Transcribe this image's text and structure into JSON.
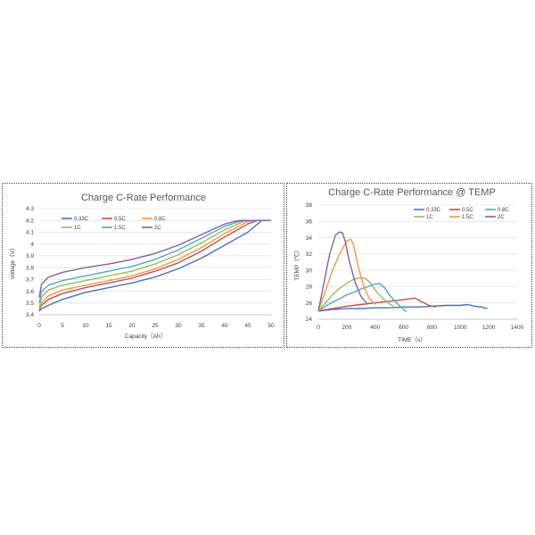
{
  "chart_data": [
    {
      "type": "line",
      "title": "Charge C-Rate Performance",
      "xlabel": "Capacity（Ah）",
      "ylabel": "Voltage（V）",
      "xlim": [
        0,
        50
      ],
      "ylim": [
        3.4,
        4.3
      ],
      "xticks": [
        "0",
        "5",
        "10",
        "15",
        "20",
        "25",
        "30",
        "35",
        "40",
        "45",
        "50"
      ],
      "yticks": [
        "3.4",
        "3.5",
        "3.6",
        "3.7",
        "3.8",
        "3.9",
        "4",
        "4.1",
        "4.2",
        "4.3"
      ],
      "grid": "horizontal",
      "legend": "top-left",
      "series": [
        {
          "name": "0.33C",
          "color": "#4472C4",
          "x": [
            0,
            0.5,
            2,
            5,
            10,
            15,
            20,
            25,
            30,
            35,
            40,
            45,
            48,
            50
          ],
          "y": [
            3.43,
            3.45,
            3.48,
            3.53,
            3.59,
            3.63,
            3.67,
            3.72,
            3.79,
            3.88,
            3.99,
            4.1,
            4.2,
            4.2
          ]
        },
        {
          "name": "0.5C",
          "color": "#C0504D",
          "x": [
            0,
            0.5,
            2,
            5,
            10,
            15,
            20,
            25,
            30,
            35,
            40,
            45,
            47,
            50
          ],
          "y": [
            3.44,
            3.48,
            3.53,
            3.58,
            3.63,
            3.67,
            3.71,
            3.77,
            3.84,
            3.94,
            4.06,
            4.17,
            4.2,
            4.2
          ]
        },
        {
          "name": "0.8C",
          "color": "#F79646",
          "x": [
            0,
            0.5,
            2,
            5,
            10,
            15,
            20,
            25,
            30,
            35,
            40,
            45,
            46.5,
            50
          ],
          "y": [
            3.45,
            3.5,
            3.56,
            3.61,
            3.65,
            3.69,
            3.73,
            3.79,
            3.87,
            3.97,
            4.09,
            4.19,
            4.2,
            4.2
          ]
        },
        {
          "name": "1C",
          "color": "#9BBB59",
          "x": [
            0,
            0.5,
            2,
            5,
            10,
            15,
            20,
            25,
            30,
            35,
            40,
            44,
            45.5,
            50
          ],
          "y": [
            3.46,
            3.55,
            3.61,
            3.65,
            3.69,
            3.73,
            3.77,
            3.83,
            3.91,
            4.01,
            4.12,
            4.19,
            4.2,
            4.2
          ]
        },
        {
          "name": "1.5C",
          "color": "#4BACC6",
          "x": [
            0,
            0.5,
            2,
            5,
            10,
            15,
            20,
            25,
            30,
            35,
            40,
            43,
            44.5,
            50
          ],
          "y": [
            3.5,
            3.6,
            3.65,
            3.69,
            3.73,
            3.77,
            3.81,
            3.87,
            3.95,
            4.05,
            4.15,
            4.19,
            4.2,
            4.2
          ]
        },
        {
          "name": "2C",
          "color": "#8064A2",
          "x": [
            0,
            0.5,
            2,
            5,
            10,
            15,
            20,
            25,
            30,
            35,
            40,
            42,
            43.5,
            50
          ],
          "y": [
            3.55,
            3.66,
            3.72,
            3.76,
            3.8,
            3.83,
            3.87,
            3.92,
            3.99,
            4.08,
            4.17,
            4.19,
            4.2,
            4.2
          ]
        }
      ]
    },
    {
      "type": "line",
      "title": "Charge C-Rate Performance @ TEMP",
      "xlabel": "TIME（s）",
      "ylabel": "TEMP（℃）",
      "xlim": [
        0,
        1400
      ],
      "ylim": [
        24,
        38
      ],
      "xticks": [
        "0",
        "200",
        "400",
        "600",
        "800",
        "1000",
        "1200",
        "1400"
      ],
      "yticks": [
        "24",
        "26",
        "28",
        "30",
        "32",
        "34",
        "36",
        "38"
      ],
      "grid": "horizontal",
      "legend": "top-right",
      "series": [
        {
          "name": "0.33C",
          "color": "#4472C4",
          "x": [
            0,
            100,
            200,
            300,
            400,
            500,
            600,
            700,
            800,
            900,
            1000,
            1050,
            1100,
            1150,
            1190
          ],
          "y": [
            25.0,
            25.2,
            25.3,
            25.3,
            25.4,
            25.4,
            25.5,
            25.5,
            25.6,
            25.7,
            25.7,
            25.8,
            25.6,
            25.5,
            25.3
          ]
        },
        {
          "name": "0.5C",
          "color": "#C0504D",
          "x": [
            0,
            100,
            200,
            300,
            400,
            500,
            600,
            680,
            720,
            780,
            830
          ],
          "y": [
            25.0,
            25.3,
            25.6,
            25.8,
            26.0,
            26.2,
            26.4,
            26.6,
            26.2,
            25.7,
            25.5
          ]
        },
        {
          "name": "0.8C",
          "color": "#4BACC6",
          "x": [
            0,
            50,
            100,
            150,
            200,
            250,
            300,
            350,
            400,
            430,
            470,
            500,
            550,
            600,
            620
          ],
          "y": [
            25.0,
            25.6,
            26.1,
            26.5,
            27.0,
            27.3,
            27.7,
            28.0,
            28.3,
            28.4,
            27.8,
            27.0,
            26.0,
            25.2,
            24.9
          ]
        },
        {
          "name": "1C",
          "color": "#9BBB59",
          "x": [
            0,
            50,
            100,
            150,
            200,
            250,
            300,
            330,
            360,
            400,
            450,
            500,
            530
          ],
          "y": [
            25.0,
            26.0,
            27.0,
            27.8,
            28.4,
            28.9,
            29.1,
            29.0,
            28.6,
            27.6,
            26.6,
            25.9,
            25.6
          ]
        },
        {
          "name": "1.5C",
          "color": "#F79646",
          "x": [
            0,
            50,
            100,
            150,
            200,
            230,
            250,
            280,
            320,
            360,
            400
          ],
          "y": [
            25.0,
            27.5,
            30.0,
            32.0,
            33.6,
            33.8,
            33.0,
            30.5,
            28.0,
            26.5,
            25.8
          ]
        },
        {
          "name": "2C",
          "color": "#8064A2",
          "x": [
            0,
            40,
            80,
            120,
            150,
            170,
            190,
            220,
            260,
            300,
            340
          ],
          "y": [
            25.0,
            28.5,
            32.0,
            34.3,
            34.7,
            34.6,
            33.5,
            31.0,
            28.5,
            26.8,
            26.0
          ]
        }
      ]
    }
  ]
}
